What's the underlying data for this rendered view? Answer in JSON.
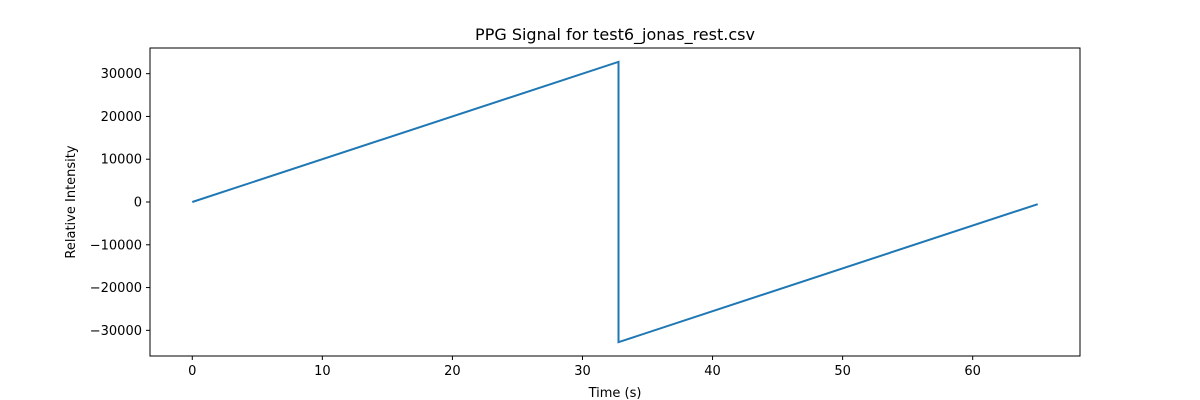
{
  "chart_data": {
    "type": "line",
    "title": "PPG Signal for test6_jonas_rest.csv",
    "xlabel": "Time (s)",
    "ylabel": "Relative Intensity",
    "xlim": [
      -3.25,
      68.25
    ],
    "ylim": [
      -36000,
      36000
    ],
    "xticks": [
      0,
      10,
      20,
      30,
      40,
      50,
      60
    ],
    "xtick_labels": [
      "0",
      "10",
      "20",
      "30",
      "40",
      "50",
      "60"
    ],
    "yticks": [
      -30000,
      -20000,
      -10000,
      0,
      10000,
      20000,
      30000
    ],
    "ytick_labels": [
      "−30000",
      "−20000",
      "−10000",
      "0",
      "10000",
      "20000",
      "30000"
    ],
    "grid": false,
    "series": [
      {
        "color": "#1f77b4",
        "x": [
          0,
          32.77,
          32.77,
          65.0
        ],
        "y": [
          0,
          32767,
          -32768,
          -500
        ]
      }
    ]
  }
}
